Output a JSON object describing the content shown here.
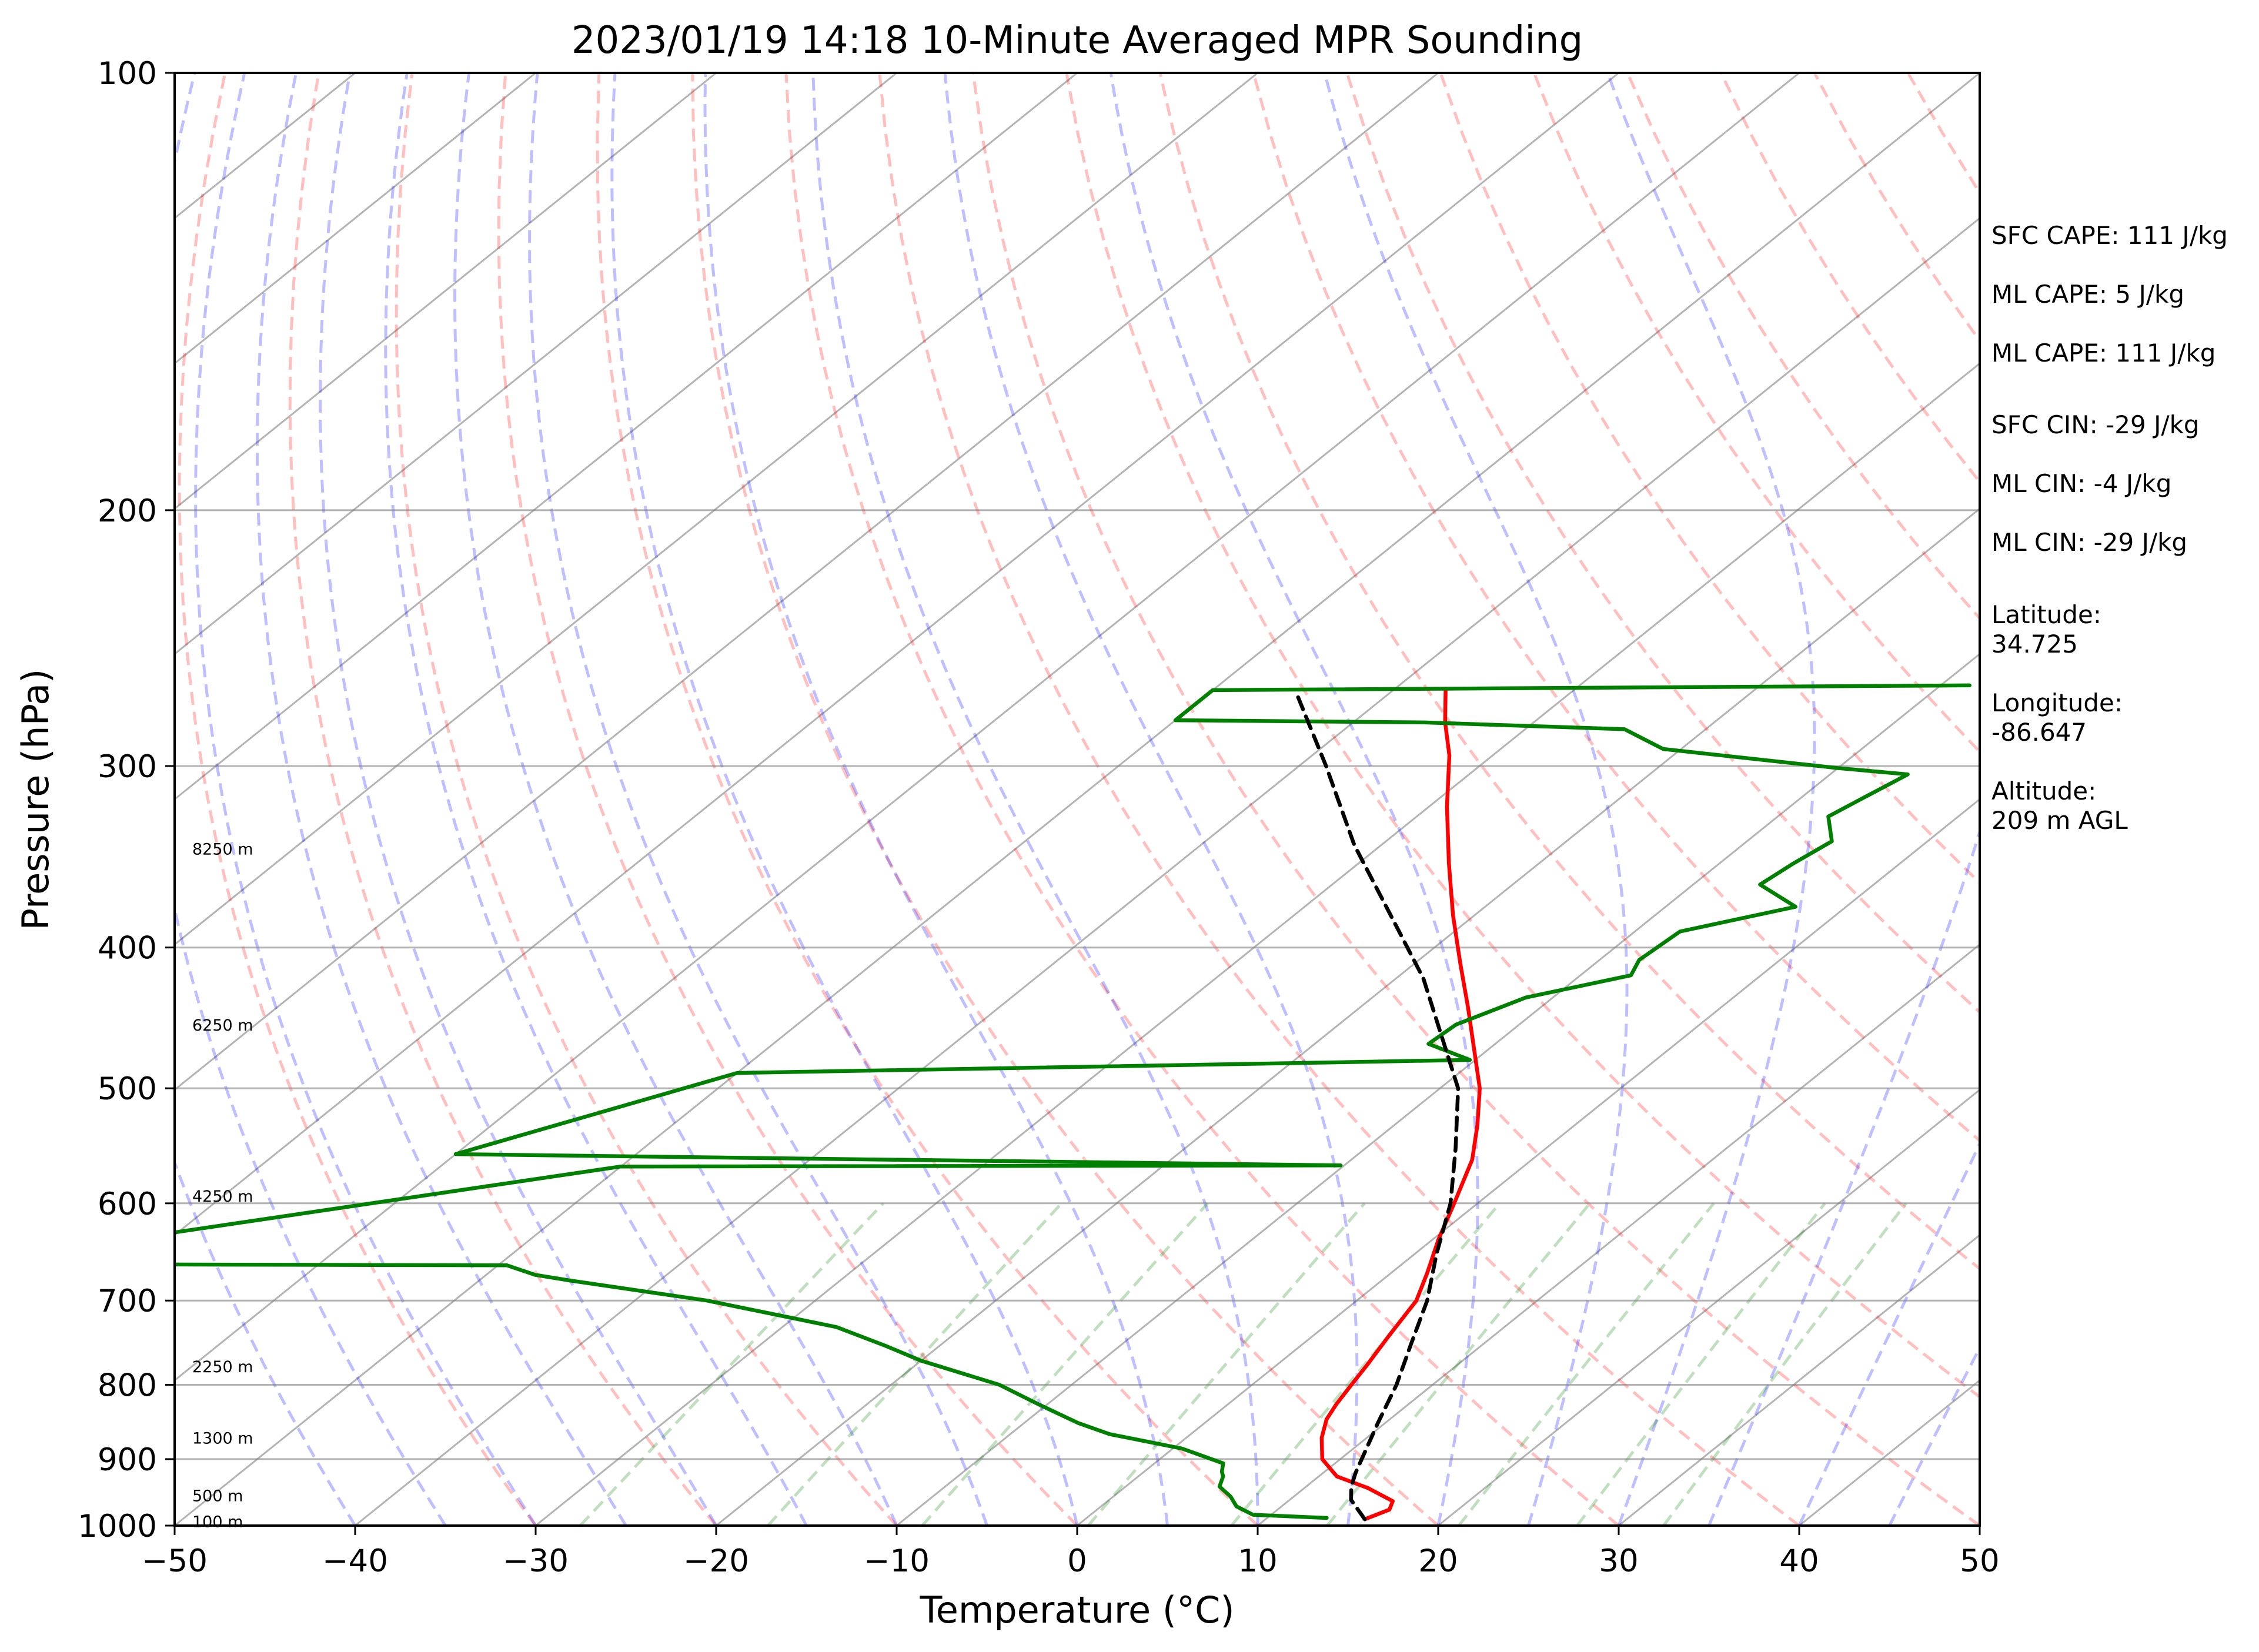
{
  "chart_data": {
    "type": "line",
    "subtype": "skew-T log-P sounding diagram",
    "title": "2023/01/19 14:18 10-Minute Averaged MPR Sounding",
    "xlabel": "Temperature (°C)",
    "ylabel": "Pressure (hPa)",
    "xlim": [
      -50,
      50
    ],
    "ylim": [
      1000,
      100
    ],
    "y_scale": "log",
    "x_ticks": [
      -50,
      -40,
      -30,
      -20,
      -10,
      0,
      10,
      20,
      30,
      40,
      50
    ],
    "x_tick_labels": [
      "−50",
      "−40",
      "−30",
      "−20",
      "−10",
      "0",
      "10",
      "20",
      "30",
      "40",
      "50"
    ],
    "y_ticks": [
      1000,
      900,
      800,
      700,
      600,
      500,
      400,
      300,
      200,
      100
    ],
    "y_tick_labels": [
      "1000",
      "900",
      "800",
      "700",
      "600",
      "500",
      "400",
      "300",
      "200",
      "100"
    ],
    "grid": true,
    "series": [
      {
        "role": "temperature",
        "color": "#ff0000",
        "style": "solid",
        "points": [
          [
            15.5,
            990
          ],
          [
            16.2,
            975
          ],
          [
            15.8,
            962
          ],
          [
            13.5,
            942
          ],
          [
            11.0,
            925
          ],
          [
            9.0,
            900
          ],
          [
            7.5,
            870
          ],
          [
            6.5,
            845
          ],
          [
            6.0,
            825
          ],
          [
            5.5,
            800
          ],
          [
            5.0,
            775
          ],
          [
            4.2,
            740
          ],
          [
            3.3,
            700
          ],
          [
            2.0,
            670
          ],
          [
            0.3,
            635
          ],
          [
            -1.3,
            600
          ],
          [
            -3.3,
            560
          ],
          [
            -5.4,
            530
          ],
          [
            -7.8,
            500
          ],
          [
            -10.8,
            470
          ],
          [
            -14.0,
            440
          ],
          [
            -17.5,
            410
          ],
          [
            -21.2,
            380
          ],
          [
            -25.0,
            350
          ],
          [
            -29.0,
            320
          ],
          [
            -32.4,
            295
          ],
          [
            -34.9,
            280
          ],
          [
            -37.1,
            266
          ]
        ]
      },
      {
        "role": "dewpoint",
        "color": "#008000",
        "style": "solid",
        "points": [
          [
            13.3,
            988
          ],
          [
            9.0,
            983
          ],
          [
            7.5,
            970
          ],
          [
            6.5,
            955
          ],
          [
            5.2,
            940
          ],
          [
            4.7,
            925
          ],
          [
            4.3,
            918
          ],
          [
            3.8,
            906
          ],
          [
            0.5,
            885
          ],
          [
            -4.5,
            865
          ],
          [
            -7.0,
            850
          ],
          [
            -10.5,
            825
          ],
          [
            -14.0,
            800
          ],
          [
            -20.0,
            770
          ],
          [
            -23.0,
            752
          ],
          [
            -27.0,
            730
          ],
          [
            -36.0,
            700
          ],
          [
            -45.0,
            678
          ],
          [
            -47.3,
            672
          ],
          [
            -49.5,
            662
          ],
          [
            -70.0,
            661
          ],
          [
            -80.0,
            661
          ],
          [
            -50.0,
            566
          ],
          [
            -10.2,
            565
          ],
          [
            -50.0,
            557
          ],
          [
            -60.0,
            555
          ],
          [
            -50.0,
            488
          ],
          [
            -10.3,
            478
          ],
          [
            -13.7,
            466
          ],
          [
            -13.5,
            452
          ],
          [
            -11.5,
            433
          ],
          [
            -7.2,
            418
          ],
          [
            -7.8,
            408
          ],
          [
            -7.5,
            390
          ],
          [
            -2.8,
            375
          ],
          [
            -6.3,
            362
          ],
          [
            -5.9,
            350
          ],
          [
            -5.3,
            338
          ],
          [
            -7.2,
            325
          ],
          [
            -6.5,
            315
          ],
          [
            -5.7,
            304
          ],
          [
            -10.0,
            301
          ],
          [
            -21.0,
            292
          ],
          [
            -24.5,
            283
          ],
          [
            -36.0,
            280
          ],
          [
            -50.0,
            279
          ],
          [
            -50.0,
            266
          ],
          [
            -8.4,
            264
          ]
        ]
      },
      {
        "role": "parcel profile",
        "color": "#000000",
        "style": "dashed",
        "points": [
          [
            15.5,
            990
          ],
          [
            13.4,
            960
          ],
          [
            12.5,
            940
          ],
          [
            11.8,
            920
          ],
          [
            9.6,
            850
          ],
          [
            8.0,
            800
          ],
          [
            6.0,
            750
          ],
          [
            3.9,
            700
          ],
          [
            1.2,
            650
          ],
          [
            -1.5,
            600
          ],
          [
            -5.0,
            550
          ],
          [
            -9.0,
            500
          ],
          [
            -18.5,
            420
          ],
          [
            -31.5,
            340
          ],
          [
            -38.5,
            300
          ],
          [
            -45.0,
            268
          ]
        ]
      }
    ],
    "background_lines": {
      "isotherms": {
        "color": "#808080",
        "style": "solid",
        "interval_c": 10
      },
      "dry_adiabats": {
        "color": "#ff0000",
        "style": "dashed",
        "opacity": 0.25
      },
      "moist_adiabats": {
        "color": "#0000ff",
        "style": "dashed",
        "opacity": 0.25
      },
      "mixing_ratio_lines": {
        "color": "#008000",
        "style": "dashed",
        "opacity": 0.25,
        "top_pressure": 600
      }
    },
    "height_annotations": [
      "8250 m",
      "6250 m",
      "4250 m",
      "2250 m",
      "1300 m",
      "500 m",
      "100 m"
    ],
    "info_panel": [
      "SFC CAPE: 111 J/kg",
      "ML CAPE: 5 J/kg",
      "ML CAPE: 111 J/kg",
      "SFC CIN: -29 J/kg",
      "ML CIN: -4 J/kg",
      "ML CIN: -29 J/kg",
      "Latitude:",
      "34.725",
      "Longitude:",
      "-86.647",
      "Altitude:",
      "209 m AGL"
    ]
  }
}
